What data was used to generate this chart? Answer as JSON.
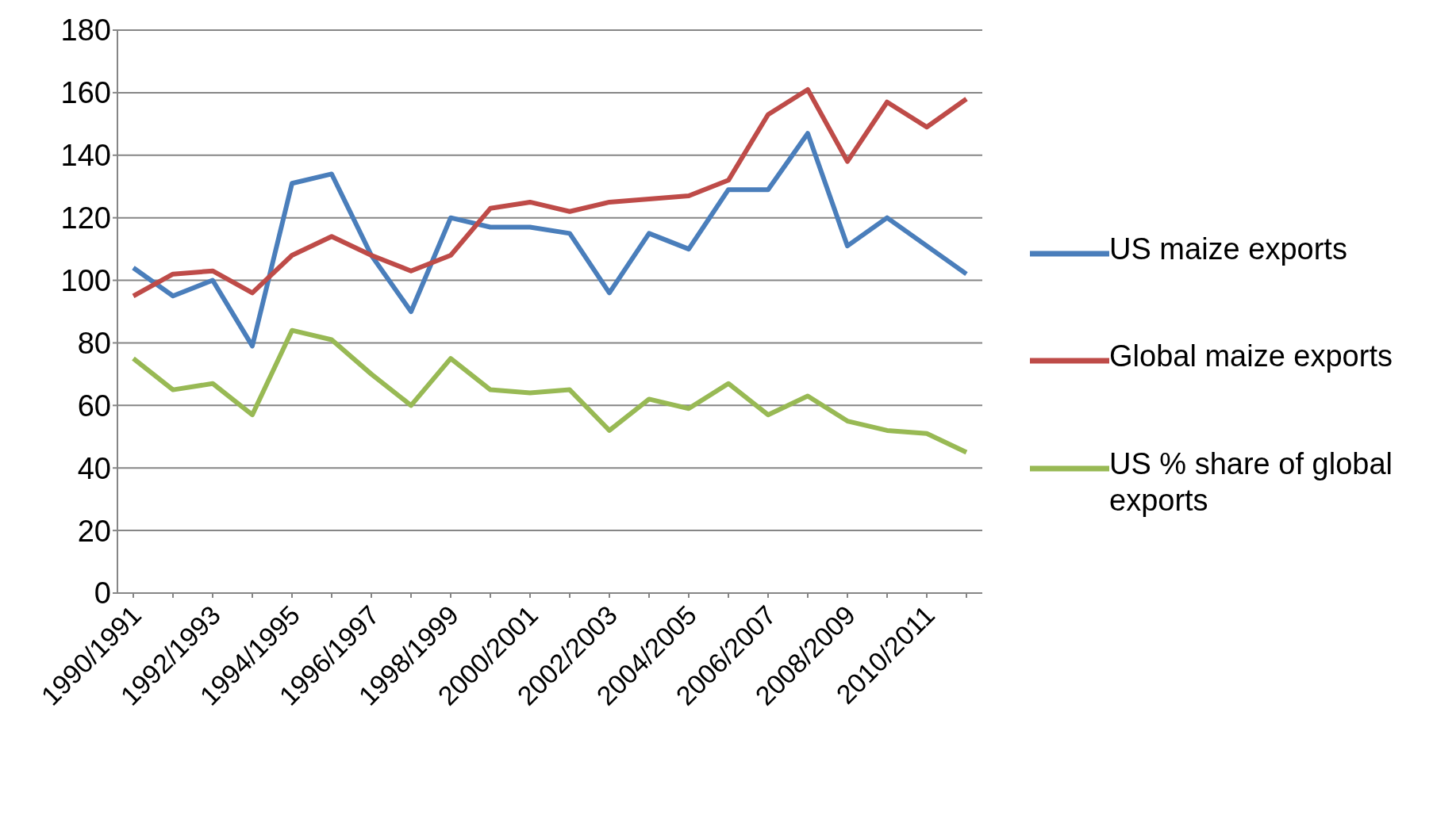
{
  "chart_data": {
    "type": "line",
    "categories": [
      "1990/1991",
      null,
      "1992/1993",
      null,
      "1994/1995",
      null,
      "1996/1997",
      null,
      "1998/1999",
      null,
      "2000/2001",
      null,
      "2002/2003",
      null,
      "2004/2005",
      null,
      "2006/2007",
      null,
      "2008/2009",
      null,
      "2010/2011",
      null
    ],
    "series": [
      {
        "name": "US maize exports",
        "color": "#4a7ebb",
        "values": [
          104,
          95,
          100,
          79,
          131,
          134,
          108,
          90,
          120,
          117,
          117,
          115,
          96,
          115,
          110,
          129,
          129,
          147,
          111,
          120,
          111,
          102
        ]
      },
      {
        "name": "Global maize exports",
        "color": "#be4b48",
        "values": [
          95,
          102,
          103,
          96,
          108,
          114,
          108,
          103,
          108,
          123,
          125,
          122,
          125,
          126,
          127,
          132,
          153,
          161,
          138,
          157,
          149,
          158
        ]
      },
      {
        "name": "US % share of global exports",
        "color": "#98b954",
        "values": [
          75,
          65,
          67,
          57,
          84,
          81,
          70,
          60,
          75,
          65,
          64,
          65,
          52,
          62,
          59,
          67,
          57,
          63,
          55,
          52,
          51,
          45
        ]
      }
    ],
    "ylim": [
      0,
      180
    ],
    "yticks": [
      0,
      20,
      40,
      60,
      80,
      100,
      120,
      140,
      160,
      180
    ],
    "grid": "y",
    "legend": "right",
    "marker": "none",
    "line_style": "solid"
  }
}
